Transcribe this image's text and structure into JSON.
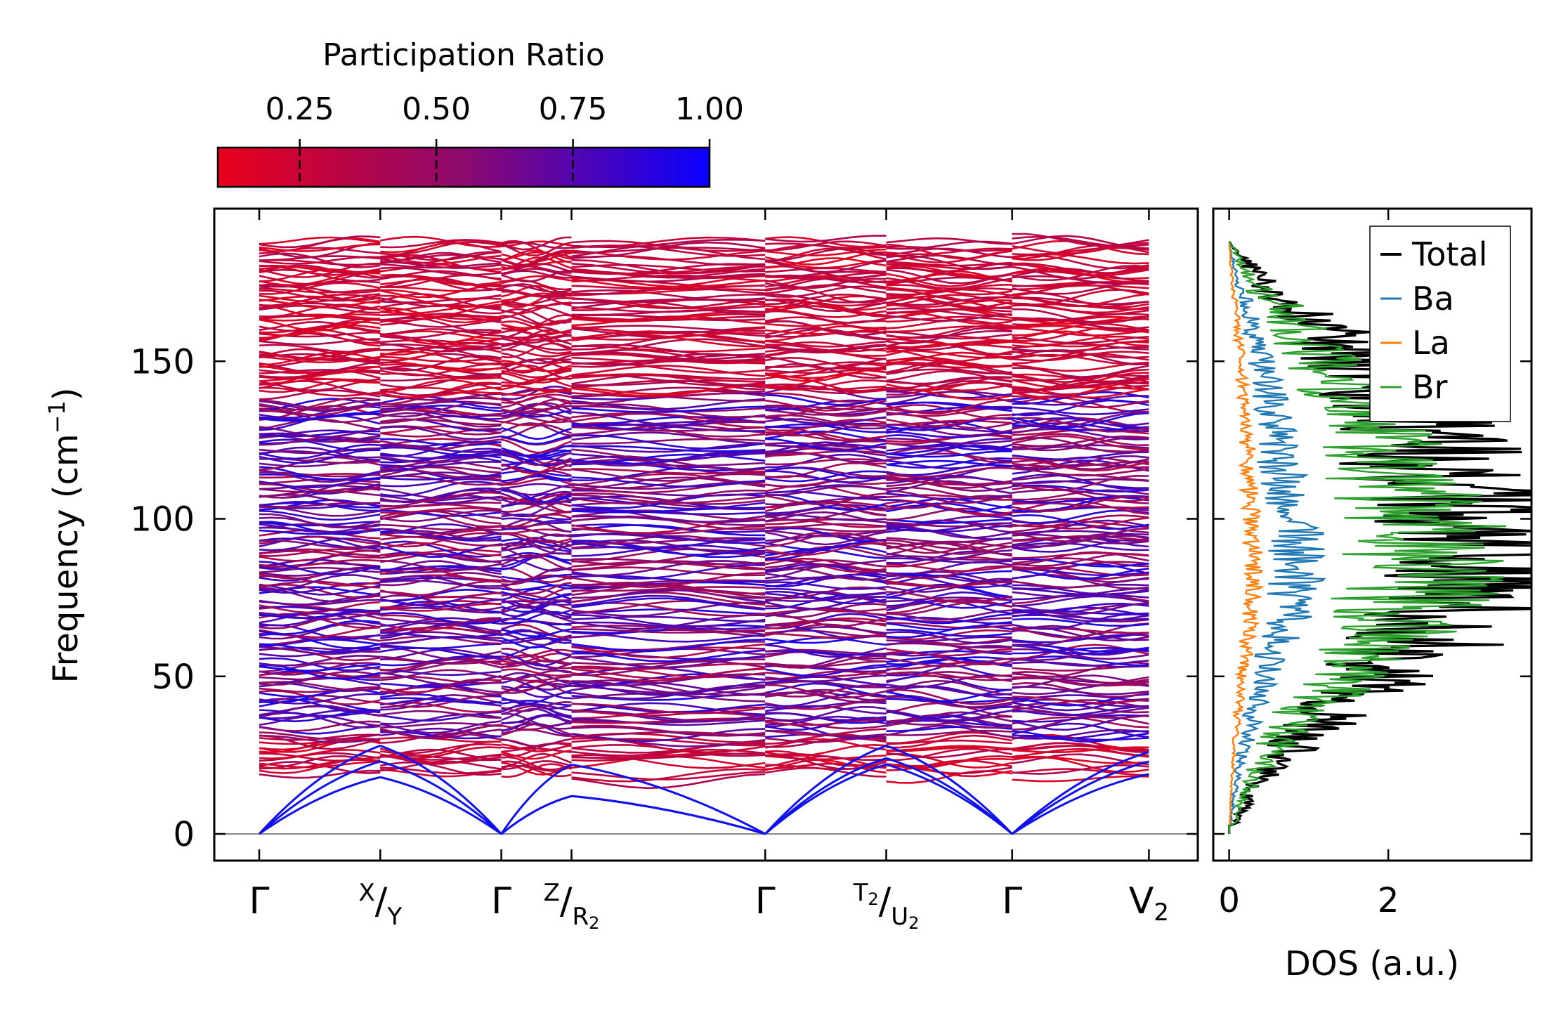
{
  "chart_data": [
    {
      "type": "colorbar",
      "title": "Participation Ratio",
      "range": [
        0.1,
        1.0
      ],
      "ticks": [
        0.25,
        0.5,
        0.75,
        1.0
      ],
      "tick_labels": [
        "0.25",
        "0.50",
        "0.75",
        "1.00"
      ],
      "colormap": [
        "#e8001a",
        "#8c0a6e",
        "#0a00ff"
      ]
    },
    {
      "type": "line",
      "title": "",
      "ylabel": "Frequency (cm",
      "ylabel_sup": "−1",
      "ylabel_close": ")",
      "ylim": [
        -9,
        198
      ],
      "yticks": [
        0,
        50,
        100,
        150
      ],
      "ytick_labels": [
        "0",
        "50",
        "100",
        "150"
      ],
      "xlim": [
        -0.37,
        7.7
      ],
      "kpoints": [
        0,
        1,
        2,
        2.58,
        4.18,
        5.18,
        6.22,
        7.35
      ],
      "kpoint_labels": [
        {
          "main": "Γ",
          "kind": "plain"
        },
        {
          "sup": "X",
          "main": "/",
          "sub": "Y",
          "kind": "slash"
        },
        {
          "main": "Γ",
          "kind": "plain"
        },
        {
          "sup": "Z",
          "main": "/",
          "sub": "R",
          "subsub": "2",
          "kind": "slash"
        },
        {
          "main": "Γ",
          "kind": "plain"
        },
        {
          "sup": "T",
          "supsub": "2",
          "main": "/",
          "sub": "U",
          "subsub": "2",
          "kind": "slash"
        },
        {
          "main": "Γ",
          "kind": "plain"
        },
        {
          "main": "V",
          "sub": "2",
          "kind": "sub"
        }
      ],
      "segments": [
        [
          0,
          1
        ],
        [
          1,
          2
        ],
        [
          2,
          2.58
        ],
        [
          2.58,
          4.18
        ],
        [
          4.18,
          5.18
        ],
        [
          5.18,
          6.22
        ],
        [
          6.22,
          7.35
        ]
      ],
      "band_frequency_range": [
        19,
        188
      ],
      "acoustic_branches": {
        "color": "#1010f0",
        "path_points": [
          {
            "k": 0,
            "values": [
              0,
              0,
              0
            ]
          },
          {
            "k": 1,
            "values": [
              18,
              23,
              28
            ]
          },
          {
            "k": 2,
            "values": [
              0,
              0,
              0
            ]
          },
          {
            "k": 2.58,
            "values": [
              12,
              12,
              22
            ]
          },
          {
            "k": 4.18,
            "values": [
              0,
              0,
              0
            ]
          },
          {
            "k": 5.18,
            "values": [
              22,
              24,
              28
            ]
          },
          {
            "k": 6.22,
            "values": [
              0,
              0,
              0
            ]
          },
          {
            "k": 7.35,
            "values": [
              19,
              23,
              26
            ]
          }
        ]
      }
    },
    {
      "type": "line",
      "xlabel": "DOS (a.u.)",
      "xlim": [
        -0.2,
        3.8
      ],
      "xticks": [
        0,
        2
      ],
      "xtick_labels": [
        "0",
        "2"
      ],
      "ylim": [
        -9,
        198
      ],
      "y_range_of_series": [
        0,
        188
      ],
      "legend": "top-right",
      "series": [
        {
          "name": "Total",
          "color": "#000000",
          "profile_peak": 3.4
        },
        {
          "name": "Ba",
          "color": "#1f77b4",
          "profile_peak": 0.85
        },
        {
          "name": "La",
          "color": "#ff7f0e",
          "profile_peak": 0.3
        },
        {
          "name": "Br",
          "color": "#2ca02c",
          "profile_peak": 2.5
        }
      ]
    }
  ]
}
